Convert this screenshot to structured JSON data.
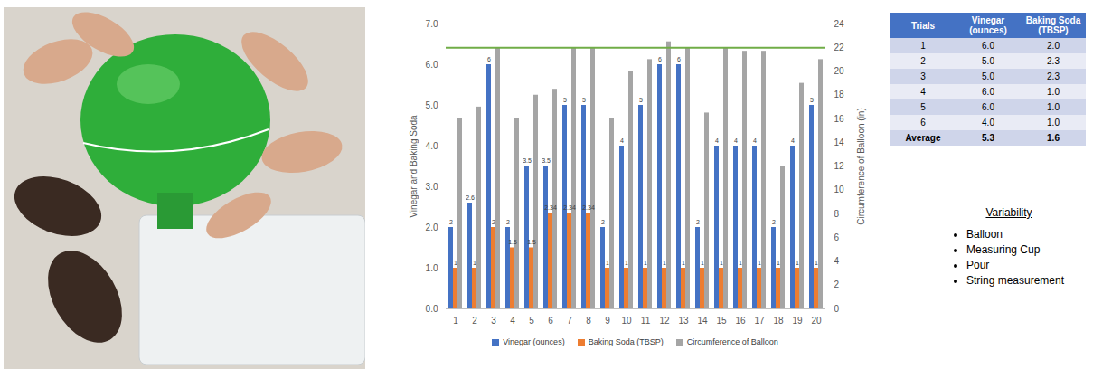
{
  "chart_data": {
    "type": "bar",
    "categories": [
      1,
      2,
      3,
      4,
      5,
      6,
      7,
      8,
      9,
      10,
      11,
      12,
      13,
      14,
      15,
      16,
      17,
      18,
      19,
      20
    ],
    "y_label": "Vinegar and Baking Soda",
    "y2_label": "Circumference of Balloon (in)",
    "ylim": [
      0,
      7
    ],
    "yticks": [
      0,
      1,
      2,
      3,
      4,
      5,
      6,
      7
    ],
    "y2lim": [
      0,
      24
    ],
    "y2ticks": [
      0,
      2,
      4,
      6,
      8,
      10,
      12,
      14,
      16,
      18,
      20,
      22,
      24
    ],
    "grid": false,
    "legend": "bottom",
    "series": [
      {
        "name": "Vinegar (ounces)",
        "color": "#4472c4",
        "data_labels": true,
        "values": [
          2,
          2.6,
          6,
          2,
          3.5,
          3.5,
          5,
          5,
          2,
          4,
          5,
          6,
          6,
          2,
          4,
          4,
          4,
          2,
          4,
          5
        ]
      },
      {
        "name": "Baking Soda (TBSP)",
        "color": "#ed7d31",
        "data_labels": true,
        "values": [
          1,
          1,
          2,
          1.5,
          1.5,
          2.34,
          2.34,
          2.34,
          1,
          1,
          1,
          1,
          1,
          1,
          1,
          1,
          1,
          1,
          1,
          1
        ]
      },
      {
        "name": "Circumference of Balloon",
        "color": "#a5a5a5",
        "axis": "y2",
        "data_labels": false,
        "values": [
          16,
          17,
          22,
          16,
          18,
          18.5,
          22,
          22,
          16,
          20,
          21,
          22.5,
          22,
          16.5,
          22,
          21.7,
          21.7,
          12,
          19,
          21
        ]
      }
    ],
    "target_line": {
      "value": 22,
      "axis": "y2",
      "color": "#70ad47"
    }
  },
  "table": {
    "header": [
      "Trials",
      "Vinegar (ounces)",
      "Baking Soda (TBSP)"
    ],
    "rows": [
      [
        "1",
        "6.0",
        "2.0"
      ],
      [
        "2",
        "5.0",
        "2.3"
      ],
      [
        "3",
        "5.0",
        "2.3"
      ],
      [
        "4",
        "6.0",
        "1.0"
      ],
      [
        "5",
        "6.0",
        "1.0"
      ],
      [
        "6",
        "4.0",
        "1.0"
      ],
      [
        "Average",
        "5.3",
        "1.6"
      ]
    ]
  },
  "variability": {
    "title": "Variability",
    "items": [
      "Balloon",
      "Measuring Cup",
      "Pour",
      "String measurement"
    ]
  }
}
